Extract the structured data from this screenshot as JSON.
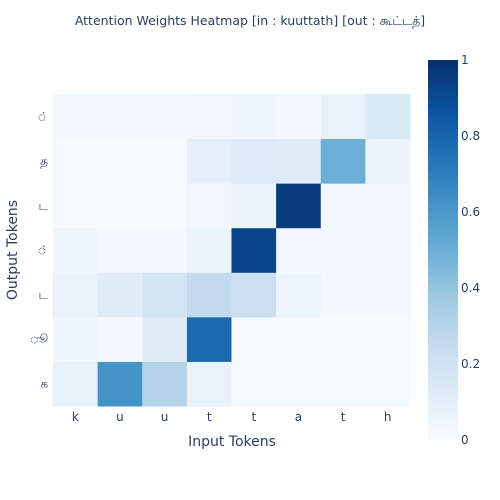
{
  "chart_data": {
    "type": "heatmap",
    "title": "Attention Weights Heatmap [in : kuuttath] [out : கூட்டத்]",
    "xlabel": "Input Tokens",
    "ylabel": "Output Tokens",
    "x": [
      "k",
      "u",
      "u",
      "t",
      "t",
      "a",
      "t",
      "h"
    ],
    "y": [
      "க",
      "ூ",
      "ட",
      "்",
      "ட",
      "த",
      "்"
    ],
    "z": [
      [
        0.08,
        0.62,
        0.3,
        0.07,
        0.01,
        0.01,
        0.01,
        0.01
      ],
      [
        0.04,
        0.02,
        0.12,
        0.78,
        0.01,
        0.01,
        0.01,
        0.01
      ],
      [
        0.07,
        0.12,
        0.18,
        0.26,
        0.22,
        0.05,
        0.02,
        0.02
      ],
      [
        0.04,
        0.02,
        0.03,
        0.06,
        0.92,
        0.02,
        0.02,
        0.02
      ],
      [
        0.01,
        0.01,
        0.01,
        0.03,
        0.06,
        0.95,
        0.02,
        0.02
      ],
      [
        0.01,
        0.01,
        0.01,
        0.09,
        0.13,
        0.12,
        0.5,
        0.06
      ],
      [
        0.02,
        0.02,
        0.02,
        0.03,
        0.04,
        0.02,
        0.07,
        0.15
      ]
    ],
    "zlim": [
      0,
      1
    ],
    "colorscale": "Blues",
    "colorbar_ticks": [
      0,
      0.2,
      0.4,
      0.6,
      0.8,
      1
    ]
  }
}
